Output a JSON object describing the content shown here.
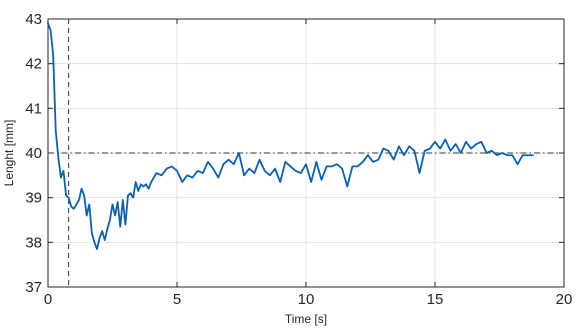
{
  "chart_data": {
    "type": "line",
    "title": "",
    "xlabel": "Time [s]",
    "ylabel": "Lenght [mm]",
    "xlim": [
      0,
      20
    ],
    "ylim": [
      37,
      43
    ],
    "xticks": [
      0,
      5,
      10,
      15,
      20
    ],
    "xtick_labels": [
      "0",
      "5",
      "10",
      "15",
      "20"
    ],
    "yticks": [
      37,
      38,
      39,
      40,
      41,
      42,
      43
    ],
    "ytick_labels": [
      "37",
      "38",
      "39",
      "40",
      "41",
      "42",
      "43"
    ],
    "grid": true,
    "series": [
      {
        "color": "#0b5fb5",
        "x": [
          0,
          0.1,
          0.2,
          0.3,
          0.35,
          0.4,
          0.5,
          0.6,
          0.7,
          0.8,
          0.9,
          1.0,
          1.1,
          1.2,
          1.3,
          1.4,
          1.5,
          1.6,
          1.7,
          1.8,
          1.9,
          2.0,
          2.1,
          2.2,
          2.3,
          2.4,
          2.5,
          2.6,
          2.7,
          2.8,
          2.9,
          3.0,
          3.1,
          3.2,
          3.3,
          3.4,
          3.5,
          3.6,
          3.7,
          3.8,
          3.9,
          4.0,
          4.2,
          4.4,
          4.6,
          4.8,
          5.0,
          5.2,
          5.4,
          5.6,
          5.8,
          6.0,
          6.2,
          6.4,
          6.6,
          6.8,
          7.0,
          7.2,
          7.4,
          7.6,
          7.8,
          8.0,
          8.2,
          8.4,
          8.6,
          8.8,
          9.0,
          9.2,
          9.4,
          9.6,
          9.8,
          10.0,
          10.2,
          10.4,
          10.6,
          10.8,
          11.0,
          11.2,
          11.4,
          11.6,
          11.8,
          12.0,
          12.2,
          12.4,
          12.6,
          12.8,
          13.0,
          13.2,
          13.4,
          13.6,
          13.8,
          14.0,
          14.2,
          14.4,
          14.6,
          14.8,
          15.0,
          15.2,
          15.4,
          15.6,
          15.8,
          16.0,
          16.2,
          16.4,
          16.6,
          16.8,
          17.0,
          17.2,
          17.4,
          17.6,
          17.8,
          18.0,
          18.2,
          18.4,
          18.6,
          18.8
        ],
        "y": [
          42.9,
          42.75,
          42.2,
          40.5,
          40.2,
          39.9,
          39.45,
          39.6,
          39.05,
          39.0,
          38.8,
          38.75,
          38.85,
          38.95,
          39.2,
          39.05,
          38.6,
          38.85,
          38.2,
          38.0,
          37.85,
          38.1,
          38.25,
          38.05,
          38.3,
          38.5,
          38.85,
          38.6,
          38.9,
          38.35,
          38.95,
          38.4,
          39.05,
          39.1,
          39.0,
          39.35,
          39.15,
          39.3,
          39.25,
          39.3,
          39.2,
          39.35,
          39.55,
          39.5,
          39.65,
          39.7,
          39.6,
          39.35,
          39.5,
          39.45,
          39.6,
          39.55,
          39.8,
          39.65,
          39.45,
          39.75,
          39.85,
          39.75,
          40.0,
          39.5,
          39.65,
          39.55,
          39.85,
          39.6,
          39.5,
          39.65,
          39.35,
          39.8,
          39.7,
          39.6,
          39.55,
          39.75,
          39.35,
          39.8,
          39.4,
          39.7,
          39.7,
          39.75,
          39.65,
          39.25,
          39.7,
          39.7,
          39.8,
          39.95,
          39.8,
          39.85,
          40.1,
          40.05,
          39.85,
          40.15,
          39.95,
          40.15,
          40.05,
          39.55,
          40.05,
          40.1,
          40.25,
          40.1,
          40.3,
          40.05,
          40.2,
          40.0,
          40.25,
          40.1,
          40.2,
          40.25,
          40.0,
          40.05,
          39.95,
          40.0,
          39.95,
          39.95,
          39.75,
          39.95,
          39.95,
          39.95
        ]
      }
    ],
    "reference_lines": [
      {
        "orientation": "horizontal",
        "value": 40,
        "style": "dash-dot",
        "color": "#333333"
      },
      {
        "orientation": "vertical",
        "value": 0.8,
        "style": "dashed",
        "color": "#333333"
      }
    ]
  }
}
